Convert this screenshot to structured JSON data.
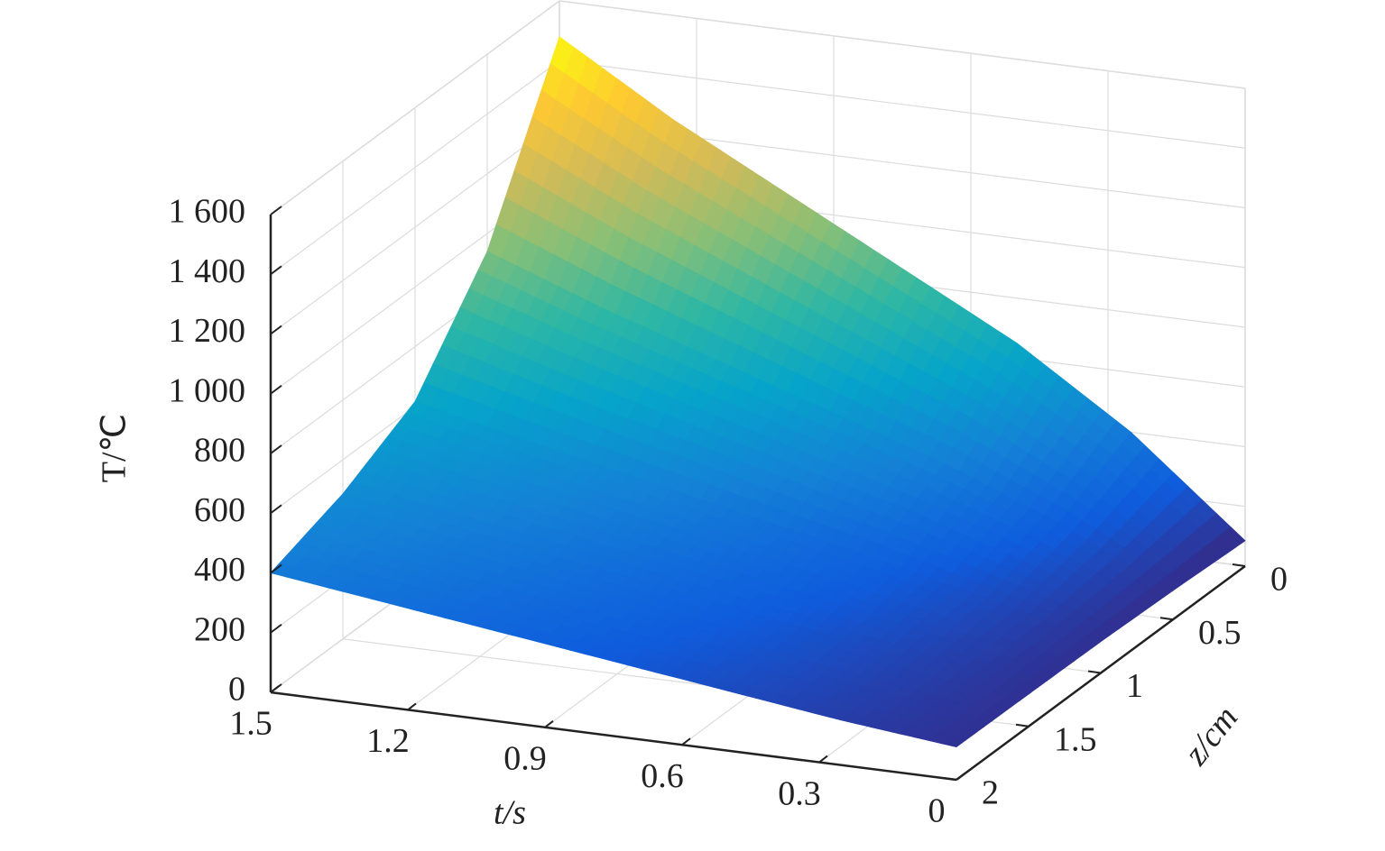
{
  "chart_data": {
    "type": "surface",
    "x_label": "t/s",
    "y_label": "z/cm",
    "z_label": "T/℃",
    "x": [
      0,
      0.25,
      0.5,
      0.75,
      1,
      1.25,
      1.5
    ],
    "y": [
      0,
      0.5,
      1,
      1.5,
      2
    ],
    "values": [
      [
        85,
        400,
        650,
        850,
        1050,
        1250,
        1480
      ],
      [
        97,
        275,
        425,
        550,
        675,
        800,
        940
      ],
      [
        105,
        200,
        290,
        370,
        450,
        530,
        616
      ],
      [
        108,
        170,
        236,
        298,
        360,
        422,
        486
      ],
      [
        110,
        150,
        200,
        250,
        300,
        350,
        400
      ]
    ],
    "xlim": [
      0,
      1.5
    ],
    "ylim": [
      0,
      2
    ],
    "zlim": [
      0,
      1600
    ],
    "xticks": [
      0,
      0.3,
      0.6,
      0.9,
      1.2,
      1.5
    ],
    "yticks": [
      0,
      0.5,
      1,
      1.5,
      2
    ],
    "zticks": [
      0,
      200,
      400,
      600,
      800,
      {
        "value": 1000,
        "label": "1 000"
      },
      {
        "value": 1200,
        "label": "1 200"
      },
      {
        "value": 1400,
        "label": "1 400"
      },
      {
        "value": 1600,
        "label": "1 600"
      }
    ],
    "grid": true,
    "colormap": [
      "#352a87",
      "#0f5cdd",
      "#1481d6",
      "#06a4ca",
      "#2eb7a4",
      "#87bf77",
      "#d1bb59",
      "#fec832",
      "#f9fb0e"
    ]
  }
}
